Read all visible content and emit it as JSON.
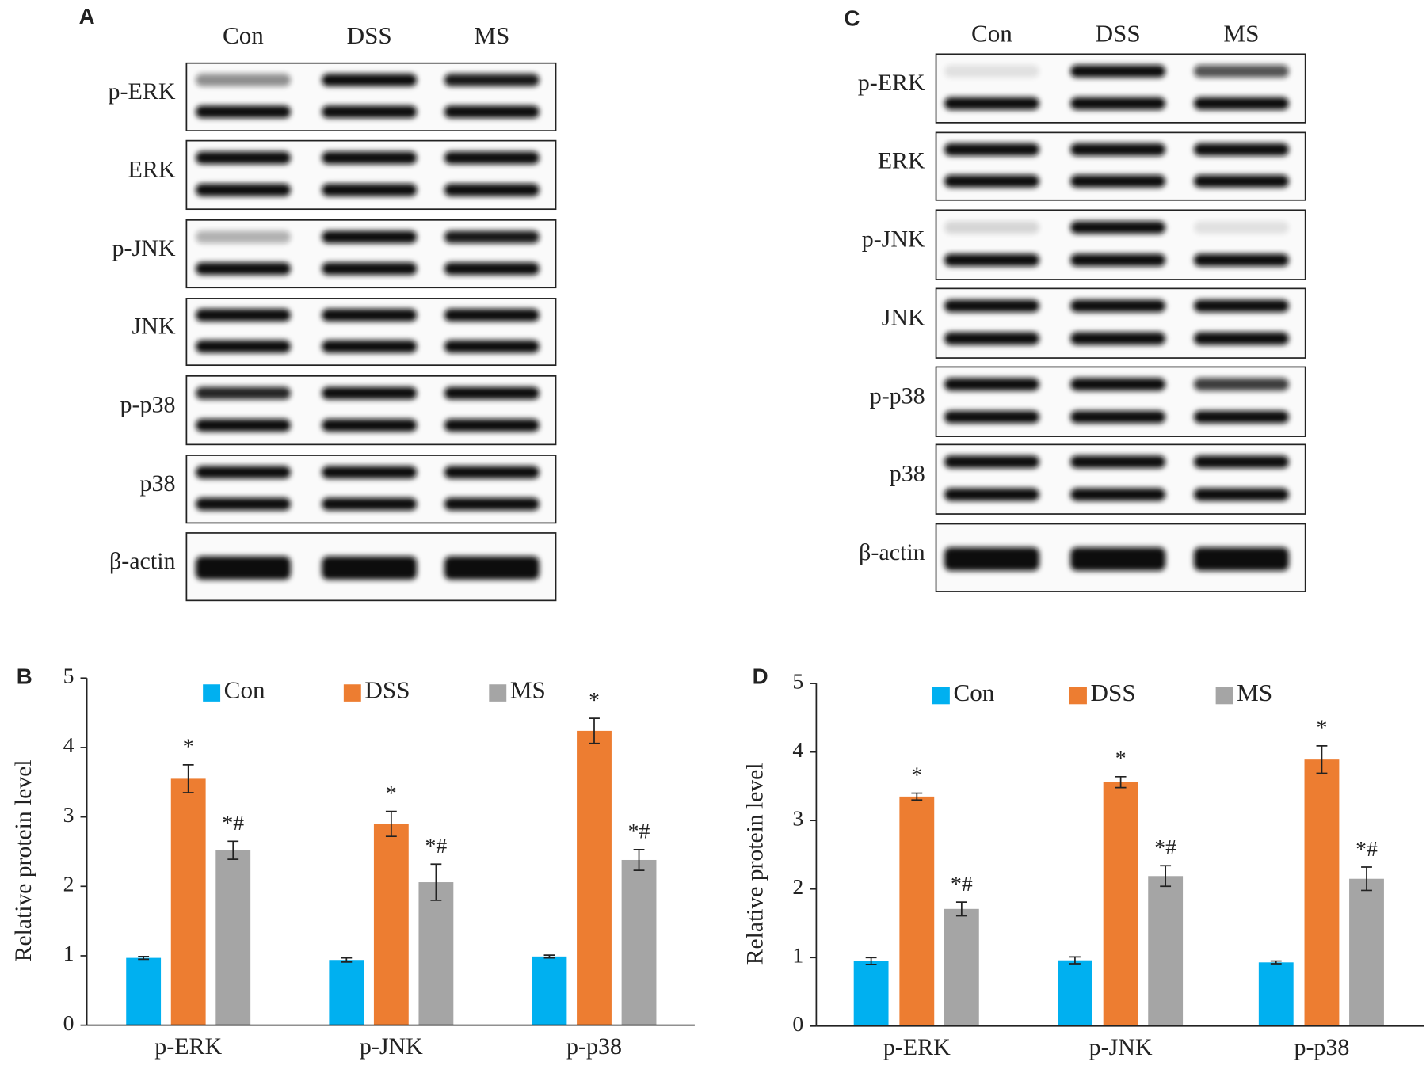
{
  "blots": [
    {
      "label": "A",
      "lanes": [
        "Con",
        "DSS",
        "MS"
      ],
      "rows": [
        "p-ERK",
        "ERK",
        "p-JNK",
        "JNK",
        "p-p38",
        "p38",
        "β-actin"
      ]
    },
    {
      "label": "C",
      "lanes": [
        "Con",
        "DSS",
        "MS"
      ],
      "rows": [
        "p-ERK",
        "ERK",
        "p-JNK",
        "JNK",
        "p-p38",
        "p38",
        "β-actin"
      ]
    }
  ],
  "chart_data": [
    {
      "type": "bar",
      "label": "B",
      "ylabel": "Relative protein level",
      "categories": [
        "p-ERK",
        "p-JNK",
        "p-p38"
      ],
      "series": [
        {
          "name": "Con",
          "color": "#00b0f0",
          "values": [
            0.97,
            0.94,
            0.99
          ],
          "errors": [
            0.02,
            0.03,
            0.02
          ]
        },
        {
          "name": "DSS",
          "color": "#ed7d31",
          "values": [
            3.55,
            2.9,
            4.24
          ],
          "errors": [
            0.2,
            0.18,
            0.18
          ],
          "annotations": [
            "*",
            "*",
            "*"
          ]
        },
        {
          "name": "MS",
          "color": "#a5a5a5",
          "values": [
            2.52,
            2.06,
            2.38
          ],
          "errors": [
            0.13,
            0.26,
            0.15
          ],
          "annotations": [
            "*#",
            "*#",
            "*#"
          ]
        }
      ],
      "ylim": [
        0,
        5
      ],
      "yticks": [
        0,
        1,
        2,
        3,
        4,
        5
      ],
      "grid": false,
      "legend": "top"
    },
    {
      "type": "bar",
      "label": "D",
      "ylabel": "Relative protein level",
      "categories": [
        "p-ERK",
        "p-JNK",
        "p-p38"
      ],
      "series": [
        {
          "name": "Con",
          "color": "#00b0f0",
          "values": [
            0.95,
            0.96,
            0.93
          ],
          "errors": [
            0.05,
            0.05,
            0.02
          ]
        },
        {
          "name": "DSS",
          "color": "#ed7d31",
          "values": [
            3.35,
            3.56,
            3.89
          ],
          "errors": [
            0.05,
            0.08,
            0.2
          ],
          "annotations": [
            "*",
            "*",
            "*"
          ]
        },
        {
          "name": "MS",
          "color": "#a5a5a5",
          "values": [
            1.71,
            2.19,
            2.15
          ],
          "errors": [
            0.1,
            0.15,
            0.17
          ],
          "annotations": [
            "*#",
            "*#",
            "*#"
          ]
        }
      ],
      "ylim": [
        0,
        5
      ],
      "yticks": [
        0,
        1,
        2,
        3,
        4,
        5
      ],
      "grid": false,
      "legend": "top"
    }
  ]
}
